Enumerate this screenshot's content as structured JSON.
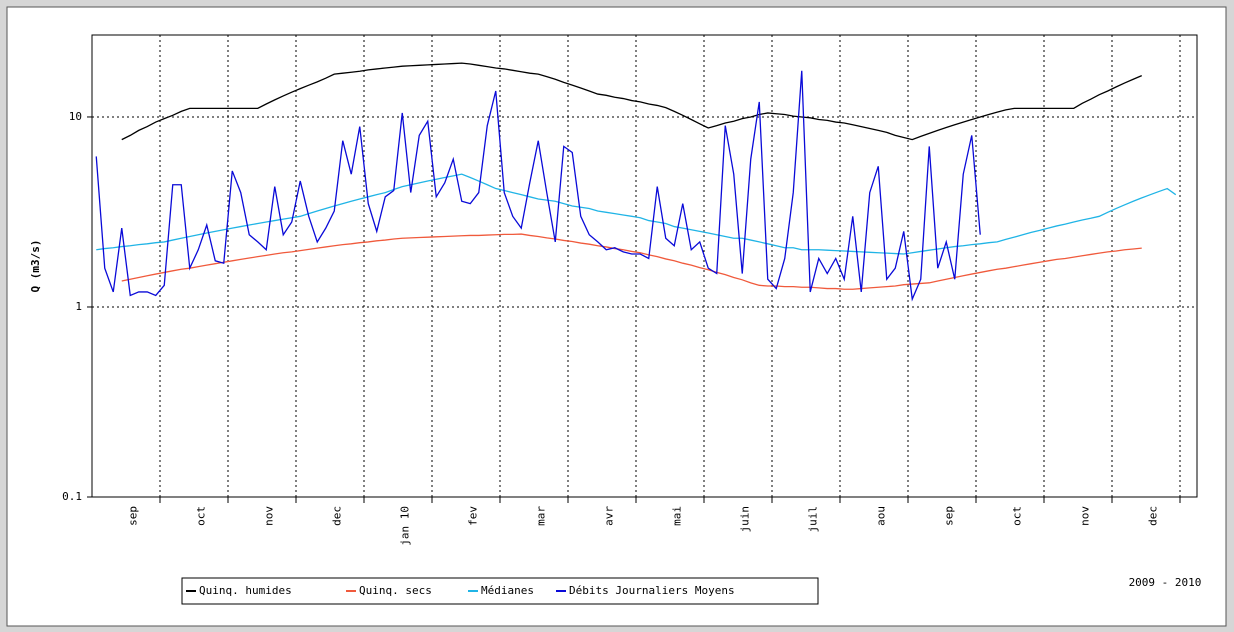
{
  "chart_data": {
    "type": "line",
    "log_y": true,
    "grid": true,
    "y_label": "Q (m3/s)",
    "period": "2009 - 2010",
    "ylim": [
      0.1,
      27
    ],
    "yticks": [
      0.1,
      1,
      10
    ],
    "categories": [
      null,
      null,
      null,
      null,
      "sep",
      null,
      null,
      null,
      null,
      null,
      null,
      null,
      "oct",
      null,
      null,
      null,
      null,
      null,
      null,
      null,
      "nov",
      null,
      null,
      null,
      null,
      null,
      null,
      null,
      "dec",
      null,
      null,
      null,
      null,
      null,
      null,
      null,
      "jan 10",
      null,
      null,
      null,
      null,
      null,
      null,
      null,
      "fev",
      null,
      null,
      null,
      null,
      null,
      null,
      null,
      "mar",
      null,
      null,
      null,
      null,
      null,
      null,
      null,
      "avr",
      null,
      null,
      null,
      null,
      null,
      null,
      null,
      "mai",
      null,
      null,
      null,
      null,
      null,
      null,
      null,
      "juin",
      null,
      null,
      null,
      null,
      null,
      null,
      null,
      "juil",
      null,
      null,
      null,
      null,
      null,
      null,
      null,
      "aou",
      null,
      null,
      null,
      null,
      null,
      null,
      null,
      "sep",
      null,
      null,
      null,
      null,
      null,
      null,
      null,
      "oct",
      null,
      null,
      null,
      null,
      null,
      null,
      null,
      "nov",
      null,
      null,
      null,
      null,
      null,
      null,
      null,
      "dec",
      null,
      null,
      null
    ],
    "series": [
      {
        "name": "Quinq. humides",
        "color": "#000000",
        "values": [
          null,
          null,
          null,
          7.6,
          8.0,
          8.5,
          8.9,
          9.4,
          9.8,
          10.2,
          10.7,
          11.1,
          11.1,
          11.1,
          11.1,
          11.1,
          11.1,
          11.1,
          11.1,
          11.1,
          11.7,
          12.3,
          12.9,
          13.5,
          14.1,
          14.7,
          15.3,
          16.0,
          16.8,
          17.0,
          17.2,
          17.4,
          17.7,
          17.9,
          18.1,
          18.3,
          18.5,
          18.6,
          18.7,
          18.8,
          18.9,
          19.0,
          19.1,
          19.2,
          19.0,
          18.7,
          18.4,
          18.1,
          17.9,
          17.6,
          17.3,
          17.0,
          16.8,
          16.3,
          15.8,
          15.2,
          14.7,
          14.2,
          13.7,
          13.2,
          13.0,
          12.7,
          12.5,
          12.2,
          12.0,
          11.7,
          11.5,
          11.2,
          10.7,
          10.2,
          9.7,
          9.2,
          8.75,
          9.0,
          9.3,
          9.5,
          9.8,
          10.0,
          10.3,
          10.5,
          10.4,
          10.3,
          10.1,
          10.0,
          9.9,
          9.7,
          9.6,
          9.4,
          9.3,
          9.1,
          8.9,
          8.7,
          8.5,
          8.3,
          8.0,
          7.8,
          7.6,
          7.9,
          8.2,
          8.5,
          8.8,
          9.1,
          9.4,
          9.7,
          10.0,
          10.3,
          10.6,
          10.9,
          11.1,
          11.1,
          11.1,
          11.1,
          11.1,
          11.1,
          11.1,
          11.1,
          11.8,
          12.4,
          13.1,
          13.7,
          14.4,
          15.1,
          15.8,
          16.5,
          null,
          null,
          null,
          null
        ]
      },
      {
        "name": "Quinq. secs",
        "color": "#f05a3c",
        "values": [
          null,
          null,
          null,
          1.37,
          1.4,
          1.43,
          1.46,
          1.49,
          1.52,
          1.55,
          1.58,
          1.6,
          1.63,
          1.66,
          1.69,
          1.72,
          1.75,
          1.78,
          1.81,
          1.84,
          1.87,
          1.9,
          1.93,
          1.95,
          1.98,
          2.01,
          2.04,
          2.07,
          2.1,
          2.13,
          2.15,
          2.18,
          2.2,
          2.23,
          2.25,
          2.28,
          2.3,
          2.31,
          2.32,
          2.33,
          2.34,
          2.35,
          2.36,
          2.37,
          2.38,
          2.38,
          2.39,
          2.4,
          2.41,
          2.41,
          2.42,
          2.38,
          2.35,
          2.31,
          2.28,
          2.24,
          2.21,
          2.17,
          2.14,
          2.1,
          2.07,
          2.03,
          2.0,
          1.96,
          1.93,
          1.88,
          1.84,
          1.79,
          1.75,
          1.7,
          1.66,
          1.61,
          1.57,
          1.52,
          1.48,
          1.43,
          1.39,
          1.34,
          1.3,
          1.29,
          1.29,
          1.28,
          1.28,
          1.27,
          1.27,
          1.26,
          1.25,
          1.25,
          1.24,
          1.24,
          1.25,
          1.26,
          1.27,
          1.28,
          1.29,
          1.31,
          1.32,
          1.33,
          1.34,
          1.37,
          1.4,
          1.43,
          1.46,
          1.49,
          1.52,
          1.55,
          1.58,
          1.6,
          1.63,
          1.66,
          1.69,
          1.72,
          1.75,
          1.78,
          1.8,
          1.83,
          1.86,
          1.89,
          1.92,
          1.95,
          1.97,
          2.0,
          2.02,
          2.04,
          null,
          null,
          null,
          null
        ]
      },
      {
        "name": "Médianes",
        "color": "#20b4e6",
        "values": [
          2.0,
          2.03,
          2.05,
          2.08,
          2.1,
          2.13,
          2.15,
          2.18,
          2.2,
          2.25,
          2.3,
          2.35,
          2.4,
          2.45,
          2.5,
          2.55,
          2.6,
          2.65,
          2.7,
          2.75,
          2.8,
          2.85,
          2.9,
          2.95,
          3.0,
          3.1,
          3.2,
          3.3,
          3.4,
          3.5,
          3.6,
          3.7,
          3.8,
          3.9,
          4.0,
          4.15,
          4.3,
          4.4,
          4.5,
          4.6,
          4.7,
          4.8,
          4.9,
          5.0,
          4.8,
          4.6,
          4.4,
          4.2,
          4.1,
          4.0,
          3.9,
          3.8,
          3.7,
          3.65,
          3.6,
          3.5,
          3.4,
          3.35,
          3.3,
          3.2,
          3.15,
          3.1,
          3.05,
          3.0,
          2.95,
          2.85,
          2.8,
          2.75,
          2.65,
          2.6,
          2.55,
          2.5,
          2.45,
          2.4,
          2.35,
          2.3,
          2.3,
          2.25,
          2.2,
          2.15,
          2.1,
          2.05,
          2.05,
          2.0,
          2.0,
          2.0,
          1.99,
          1.98,
          1.97,
          1.96,
          1.95,
          1.94,
          1.93,
          1.92,
          1.91,
          1.9,
          1.93,
          1.96,
          1.99,
          2.02,
          2.05,
          2.08,
          2.1,
          2.13,
          2.15,
          2.18,
          2.2,
          2.27,
          2.33,
          2.4,
          2.47,
          2.53,
          2.6,
          2.67,
          2.73,
          2.8,
          2.87,
          2.93,
          3.0,
          3.15,
          3.3,
          3.45,
          3.6,
          3.75,
          3.9,
          4.05,
          4.2,
          3.9
        ]
      },
      {
        "name": "Débits Journaliers Moyens",
        "color": "#0a0ad8",
        "values": [
          6.2,
          1.6,
          1.2,
          2.6,
          1.15,
          1.2,
          1.2,
          1.15,
          1.3,
          4.4,
          4.4,
          1.6,
          2.0,
          2.7,
          1.75,
          1.7,
          5.2,
          4.0,
          2.4,
          2.2,
          2.0,
          4.3,
          2.4,
          2.8,
          4.6,
          3.0,
          2.2,
          2.6,
          3.2,
          7.5,
          5.0,
          8.9,
          3.5,
          2.5,
          3.8,
          4.1,
          10.5,
          4.0,
          8.0,
          9.5,
          3.8,
          4.5,
          6.0,
          3.6,
          3.5,
          4.0,
          9.0,
          13.7,
          4.0,
          3.0,
          2.6,
          4.5,
          7.5,
          4.0,
          2.2,
          7.0,
          6.5,
          3.0,
          2.4,
          2.2,
          2.0,
          2.05,
          1.95,
          1.9,
          1.9,
          1.8,
          4.3,
          2.3,
          2.1,
          3.5,
          2.0,
          2.2,
          1.6,
          1.5,
          9.0,
          5.0,
          1.5,
          6.0,
          12.0,
          1.4,
          1.25,
          1.8,
          4.0,
          17.5,
          1.2,
          1.8,
          1.5,
          1.8,
          1.4,
          3.0,
          1.2,
          4.0,
          5.5,
          1.4,
          1.6,
          2.5,
          1.1,
          1.4,
          7.0,
          1.6,
          2.2,
          1.4,
          5.0,
          8.0,
          2.4,
          null,
          null,
          null,
          null,
          null,
          null,
          null,
          null,
          null,
          null,
          null,
          null,
          null,
          null,
          null,
          null,
          null,
          null,
          null,
          null,
          null,
          null,
          null
        ]
      }
    ]
  }
}
